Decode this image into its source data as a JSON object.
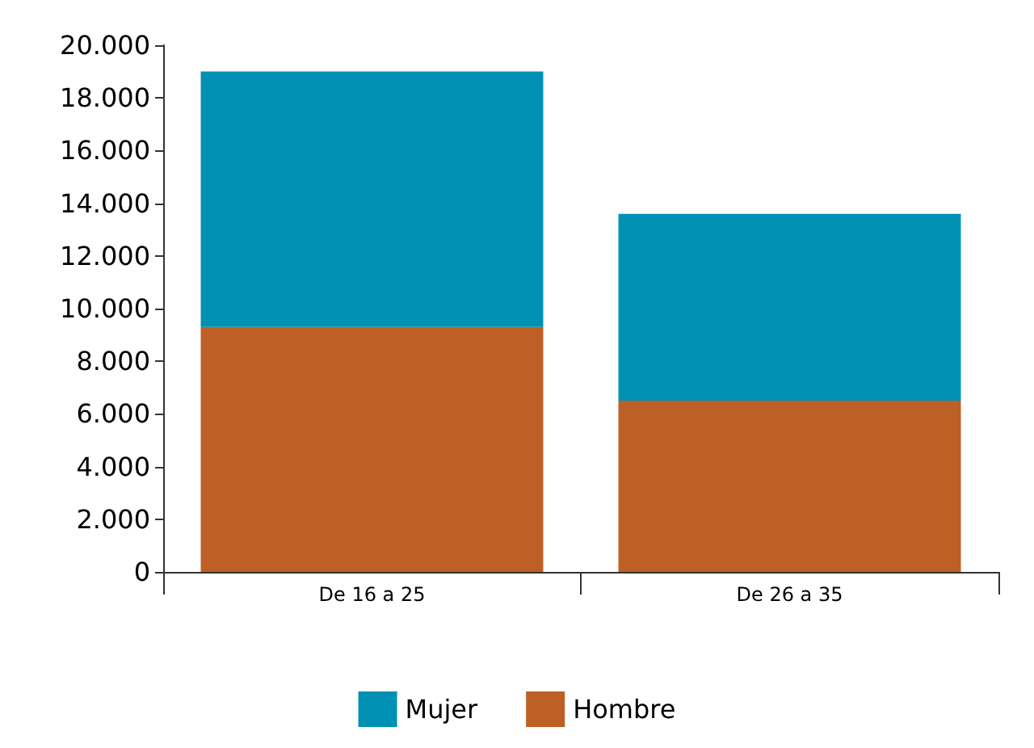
{
  "chart_data": {
    "type": "bar",
    "stacked": true,
    "categories": [
      "De 16 a 25",
      "De 26 a 35"
    ],
    "series": [
      {
        "name": "Hombre",
        "color": "#be5f26",
        "values": [
          9300,
          6500
        ]
      },
      {
        "name": "Mujer",
        "color": "#0090b4",
        "values": [
          9700,
          7100
        ]
      }
    ],
    "ylim": [
      0,
      20000
    ],
    "yticks": [
      0,
      {
        "value": 2000,
        "label": "2.000"
      },
      {
        "value": 4000,
        "label": "4.000"
      },
      {
        "value": 6000,
        "label": "6.000"
      },
      {
        "value": 8000,
        "label": "8.000"
      },
      {
        "value": 10000,
        "label": "10.000"
      },
      {
        "value": 12000,
        "label": "12.000"
      },
      {
        "value": 14000,
        "label": "14.000"
      },
      {
        "value": 16000,
        "label": "16.000"
      },
      {
        "value": 18000,
        "label": "18.000"
      },
      {
        "value": 20000,
        "label": "20.000"
      }
    ],
    "grid": false,
    "legend": "bottom"
  }
}
